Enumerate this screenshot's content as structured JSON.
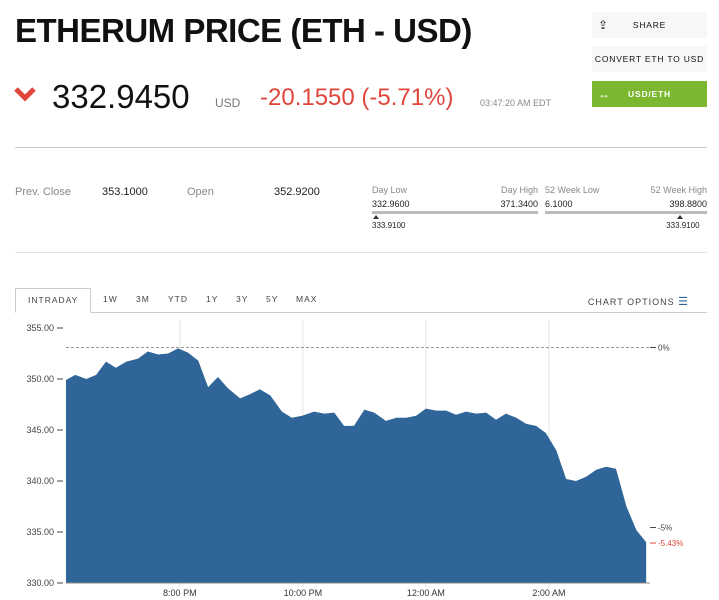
{
  "header": {
    "title": "ETHERUM PRICE (ETH - USD)",
    "price": "332.9450",
    "currency": "USD",
    "change": "-20.1550 (-5.71%)",
    "time": "03:47:20 AM EDT"
  },
  "buttons": [
    "SHARE",
    "CONVERT ETH TO USD",
    "USD/ETH"
  ],
  "stats": {
    "prev_close": {
      "label": "Prev. Close",
      "value": "353.1000"
    },
    "open": {
      "label": "Open",
      "value": "352.9200"
    },
    "day_range": {
      "low_label": "Day Low",
      "low": "332.9600",
      "high_label": "Day High",
      "high": "371.3400",
      "current": "333.9100"
    },
    "week52_range": {
      "low_label": "52 Week Low",
      "low": "6.1000",
      "high_label": "52 Week High",
      "high": "398.8800",
      "current": "333.9100"
    }
  },
  "tabs": [
    "INTRADAY",
    "1W",
    "3M",
    "YTD",
    "1Y",
    "3Y",
    "5Y",
    "MAX"
  ],
  "chart_options": "CHART OPTIONS",
  "chart_data": {
    "type": "area",
    "color": "#2f6598",
    "x": [
      18.15,
      18.3,
      18.48,
      18.64,
      18.8,
      18.96,
      19.13,
      19.32,
      19.48,
      19.65,
      19.81,
      19.97,
      20.13,
      20.3,
      20.46,
      20.62,
      20.78,
      20.98,
      21.14,
      21.3,
      21.47,
      21.66,
      21.82,
      21.99,
      22.18,
      22.35,
      22.51,
      22.67,
      22.83,
      23.0,
      23.16,
      23.35,
      23.52,
      23.68,
      23.84,
      24.0,
      24.17,
      24.33,
      24.49,
      24.65,
      24.82,
      24.98,
      25.14,
      25.3,
      25.47,
      25.63,
      25.79,
      25.95,
      26.12,
      26.28,
      26.44,
      26.6,
      26.77,
      26.93,
      27.09,
      27.26,
      27.42,
      27.58
    ],
    "values": [
      349.9,
      350.4,
      350.0,
      350.4,
      351.7,
      351.1,
      351.7,
      352.0,
      352.7,
      352.4,
      352.5,
      353.0,
      352.6,
      351.8,
      349.2,
      350.2,
      349.1,
      348.1,
      348.5,
      349.0,
      348.4,
      346.8,
      346.2,
      346.4,
      346.8,
      346.6,
      346.7,
      345.4,
      345.4,
      347.0,
      346.7,
      345.9,
      346.2,
      346.2,
      346.4,
      347.1,
      346.9,
      346.9,
      346.5,
      346.8,
      346.6,
      346.7,
      346.0,
      346.6,
      346.2,
      345.6,
      345.4,
      344.7,
      343.0,
      340.2,
      340.0,
      340.4,
      341.1,
      341.4,
      341.2,
      337.5,
      335.2,
      334.0
    ],
    "xlim": [
      18.15,
      27.61
    ],
    "xticks": [
      {
        "value": 20,
        "label": "8:00 PM"
      },
      {
        "value": 22,
        "label": "10:00 PM"
      },
      {
        "value": 24,
        "label": "12:00 AM"
      },
      {
        "value": 26,
        "label": "2:00 AM"
      }
    ],
    "ylim": [
      330,
      355
    ],
    "yticks": [
      {
        "value": 330,
        "label": "330.00"
      },
      {
        "value": 335,
        "label": "335.00"
      },
      {
        "value": 340,
        "label": "340.00"
      },
      {
        "value": 345,
        "label": "345.00"
      },
      {
        "value": 350,
        "label": "350.00"
      },
      {
        "value": 355,
        "label": "355.00"
      }
    ],
    "y2lim": [
      -6.54,
      0.54
    ],
    "y2ticks": [
      {
        "value": 0,
        "label": "0%"
      },
      {
        "value": -5,
        "label": "-5%"
      }
    ],
    "reference_line": 0,
    "current_marker": {
      "value": -5.43,
      "label": "-5.43%",
      "color": "#e0463b"
    },
    "grid": true
  }
}
